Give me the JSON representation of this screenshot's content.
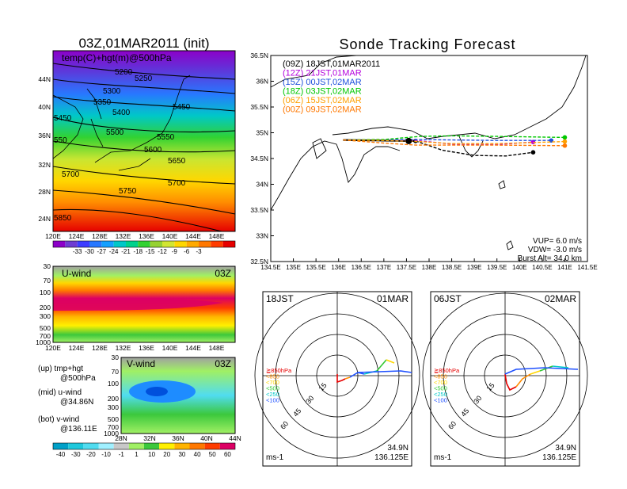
{
  "left_title": "03Z,01MAR2011 (init)",
  "right_title": "Sonde Tracking Forecast",
  "top_map": {
    "label": "temp(C)+hgt(m)@500hPa",
    "lon_ticks": [
      "120E",
      "124E",
      "128E",
      "132E",
      "136E",
      "140E",
      "144E",
      "148E"
    ],
    "lat_ticks": [
      "44N",
      "40N",
      "36N",
      "32N",
      "28N",
      "24N"
    ],
    "contour_labels": [
      "5200",
      "5250",
      "5300",
      "5350",
      "5400",
      "5450",
      "5450",
      "5500",
      "5550",
      "5600",
      "5650",
      "5700",
      "5700",
      "5750",
      "5850",
      "550"
    ],
    "colorbar_labels": [
      "-33",
      "-30",
      "-27",
      "-24",
      "-21",
      "-18",
      "-15",
      "-12",
      "-9",
      "-6",
      "-3"
    ],
    "colorbar_colors": [
      "#8c00c8",
      "#6e3cd2",
      "#3c3cff",
      "#2878ff",
      "#14a0ff",
      "#00c8c8",
      "#00d28c",
      "#32d232",
      "#96d232",
      "#d2e632",
      "#ffd700",
      "#ffaa00",
      "#ff7800",
      "#ff3c00",
      "#e60000"
    ]
  },
  "u_panel": {
    "label": "U-wind",
    "time": "03Z",
    "p_ticks": [
      "30",
      "70",
      "100",
      "200",
      "300",
      "500",
      "700",
      "1000"
    ],
    "lon_ticks": [
      "120E",
      "124E",
      "128E",
      "132E",
      "136E",
      "140E",
      "144E",
      "148E"
    ]
  },
  "v_panel": {
    "label": "V-wind",
    "time": "03Z",
    "p_ticks": [
      "30",
      "70",
      "100",
      "200",
      "300",
      "500",
      "700",
      "1000"
    ],
    "lat_ticks": [
      "28N",
      "32N",
      "36N",
      "40N",
      "44N"
    ]
  },
  "legend_notes": [
    {
      "l1": "(up) tmp+hgt",
      "l2": "@500hPa"
    },
    {
      "l1": "(mid) u-wind",
      "l2": "@34.86N"
    },
    {
      "l1": "(bot) v-wind",
      "l2": "@136.11E"
    }
  ],
  "bottom_colorbar": {
    "labels": [
      "-40",
      "-30",
      "-20",
      "-10",
      "-1",
      "1",
      "10",
      "20",
      "30",
      "40",
      "50",
      "60"
    ],
    "colors": [
      "#00a0c8",
      "#1ec8dc",
      "#50dcf0",
      "#a0f0ff",
      "#c8c8c8",
      "#a0f064",
      "#3cc83c",
      "#fff000",
      "#ffb400",
      "#ff7800",
      "#ff3c00",
      "#dc0064"
    ]
  },
  "track_map": {
    "x_ticks": [
      "134.5E",
      "135E",
      "135.5E",
      "136E",
      "136.5E",
      "137E",
      "137.5E",
      "138E",
      "138.5E",
      "139E",
      "139.5E",
      "140E",
      "140.5E",
      "141E",
      "141.5E"
    ],
    "y_ticks": [
      "36.5N",
      "36N",
      "35.5N",
      "35N",
      "34.5N",
      "34N",
      "33.5N",
      "33N",
      "32.5N"
    ],
    "params": {
      "vup": "VUP= 6.0 m/s",
      "vdw": "VDW= -3.0 m/s",
      "burst": "Burst Alt= 34.0 km"
    }
  },
  "chart_data": {
    "type": "line",
    "title": "Sonde Tracking Forecast",
    "xlim": [
      134.5,
      141.5
    ],
    "ylim": [
      32.5,
      36.5
    ],
    "series": [
      {
        "name": "(09Z) 18JST,01MAR2011",
        "color": "#000000",
        "dashed": false,
        "x": [
          136.1,
          136.8,
          137.5,
          137.7
        ],
        "y": [
          34.86,
          34.85,
          34.84,
          34.84
        ]
      },
      {
        "name": "(09Z) 18JST,01MAR2011",
        "color": "#000000",
        "dashed": true,
        "x": [
          137.7,
          138.3,
          139.0,
          139.7,
          140.3
        ],
        "y": [
          34.84,
          34.66,
          34.56,
          34.55,
          34.62
        ]
      },
      {
        "name": "(12Z) 21JST,01MAR",
        "color": "#b400dc",
        "dashed": true,
        "x": [
          136.1,
          137.0,
          137.7,
          138.5,
          139.5,
          140.3
        ],
        "y": [
          34.86,
          34.86,
          34.85,
          34.78,
          34.77,
          34.82
        ]
      },
      {
        "name": "(15Z) 00JST,02MAR",
        "color": "#1e50dc",
        "dashed": true,
        "x": [
          136.1,
          137.0,
          137.7,
          138.5,
          139.5,
          140.7
        ],
        "y": [
          34.86,
          34.86,
          34.87,
          34.86,
          34.85,
          34.85
        ]
      },
      {
        "name": "(18Z) 03JST,02MAR",
        "color": "#00c800",
        "dashed": true,
        "x": [
          136.1,
          137.0,
          137.8,
          138.5,
          139.5,
          141.0
        ],
        "y": [
          34.86,
          34.87,
          34.93,
          34.94,
          34.93,
          34.91
        ]
      },
      {
        "name": "(06Z) 15JST,02MAR",
        "color": "#ffa000",
        "dashed": true,
        "x": [
          136.1,
          137.0,
          137.8,
          138.5,
          139.5,
          141.0
        ],
        "y": [
          34.86,
          34.85,
          34.83,
          34.79,
          34.79,
          34.83
        ]
      },
      {
        "name": "(00Z) 09JST,02MAR",
        "color": "#ff7800",
        "dashed": true,
        "x": [
          136.1,
          137.0,
          137.7,
          138.5,
          139.5,
          141.0
        ],
        "y": [
          34.86,
          34.8,
          34.76,
          34.76,
          34.76,
          34.75
        ]
      }
    ],
    "annotations": [
      "VUP= 6.0 m/s",
      "VDW= -3.0 m/s",
      "Burst Alt= 34.0 km"
    ]
  },
  "hodo1": {
    "time": "18JST",
    "date": "01MAR",
    "unit": "ms-1",
    "lat": "34.9N",
    "lon": "136.125E",
    "ring_labels": [
      "15",
      "30",
      "45",
      "60"
    ],
    "levels": [
      {
        "t": "≧850hPa",
        "c": "#e60000"
      },
      {
        "t": "<850",
        "c": "#ff8c00"
      },
      {
        "t": "<700",
        "c": "#ffd700"
      },
      {
        "t": "<500",
        "c": "#32c832"
      },
      {
        "t": "<250",
        "c": "#00c8c8"
      },
      {
        "t": "<100",
        "c": "#1e50ff"
      }
    ]
  },
  "hodo2": {
    "time": "06JST",
    "date": "02MAR",
    "unit": "ms-1",
    "lat": "34.9N",
    "lon": "136.125E",
    "ring_labels": [
      "15",
      "30",
      "45",
      "60"
    ],
    "levels": [
      {
        "t": "≧850hPa",
        "c": "#e60000"
      },
      {
        "t": "<850",
        "c": "#ff8c00"
      },
      {
        "t": "<700",
        "c": "#ffd700"
      },
      {
        "t": "<500",
        "c": "#32c832"
      },
      {
        "t": "<250",
        "c": "#00c8c8"
      },
      {
        "t": "<100",
        "c": "#1e50ff"
      }
    ]
  }
}
